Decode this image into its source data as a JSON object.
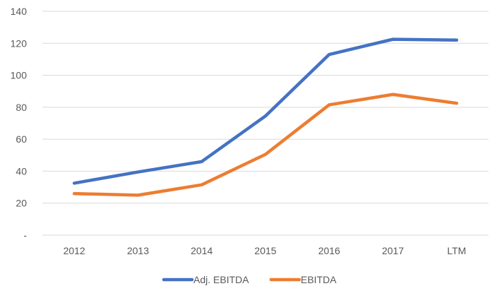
{
  "chart_data": {
    "type": "line",
    "categories": [
      "2012",
      "2013",
      "2014",
      "2015",
      "2016",
      "2017",
      "LTM"
    ],
    "series": [
      {
        "name": "Adj. EBITDA",
        "values": [
          32.5,
          39.5,
          46,
          74.5,
          113,
          122.5,
          122
        ],
        "color": "#4472C4"
      },
      {
        "name": "EBITDA",
        "values": [
          26,
          25,
          31.5,
          50.5,
          81.5,
          88,
          82.5
        ],
        "color": "#ED7D31"
      }
    ],
    "yticks": [
      {
        "value": 0,
        "label": "-"
      },
      {
        "value": 20,
        "label": "20"
      },
      {
        "value": 40,
        "label": "40"
      },
      {
        "value": 60,
        "label": "60"
      },
      {
        "value": 80,
        "label": "80"
      },
      {
        "value": 100,
        "label": "100"
      },
      {
        "value": 120,
        "label": "120"
      },
      {
        "value": 140,
        "label": "140"
      }
    ],
    "ylim": [
      0,
      140
    ],
    "grid": true,
    "legend_position": "bottom",
    "grid_color": "#d9d9d9",
    "text_color": "#595959"
  }
}
